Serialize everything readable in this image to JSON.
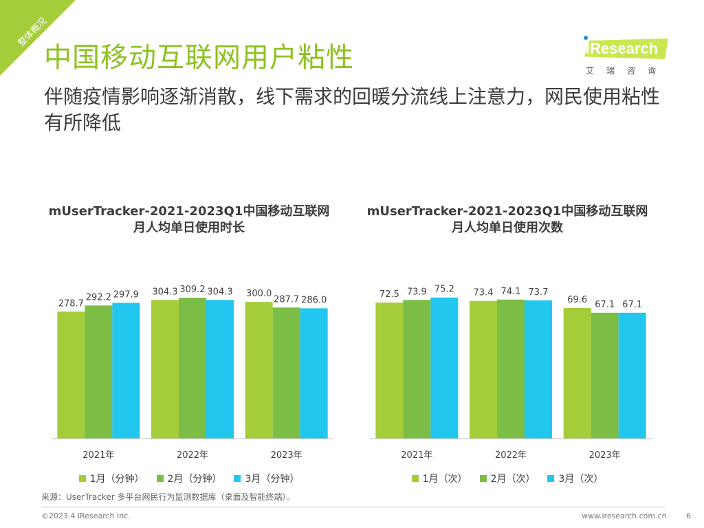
{
  "corner_tag": "整体概况",
  "title": "中国移动互联网用户粘性",
  "subtitle": "伴随疫情影响逐渐消散，线下需求的回暖分流线上注意力，网民使用粘性有所降低",
  "logo": {
    "text": "iResearch",
    "cn": "艾瑞咨询"
  },
  "colors": {
    "jan": "#a4cd39",
    "feb": "#7cbd45",
    "mar": "#22c7ef",
    "accent": "#8dc21f"
  },
  "chart_data": [
    {
      "type": "bar",
      "title": "mUserTracker-2021-2023Q1中国移动互联网月人均单日使用时长",
      "title_line1": "mUserTracker-2021-2023Q1中国移动互联网",
      "title_line2": "月人均单日使用时长",
      "categories": [
        "2021年",
        "2022年",
        "2023年"
      ],
      "series": [
        {
          "name": "1月（分钟）",
          "values": [
            278.7,
            304.3,
            300.0
          ],
          "labels": [
            "278.7",
            "304.3",
            "300.0"
          ]
        },
        {
          "name": "2月（分钟）",
          "values": [
            292.2,
            309.2,
            287.7
          ],
          "labels": [
            "292.2",
            "309.2",
            "287.7"
          ]
        },
        {
          "name": "3月（分钟）",
          "values": [
            297.9,
            304.3,
            286.0
          ],
          "labels": [
            "297.9",
            "304.3",
            "286.0"
          ]
        }
      ],
      "ylim": [
        0,
        350
      ],
      "legend": "bottom",
      "grid": false
    },
    {
      "type": "bar",
      "title": "mUserTracker-2021-2023Q1中国移动互联网月人均单日使用次数",
      "title_line1": "mUserTracker-2021-2023Q1中国移动互联网",
      "title_line2": "月人均单日使用次数",
      "categories": [
        "2021年",
        "2022年",
        "2023年"
      ],
      "series": [
        {
          "name": "1月（次）",
          "values": [
            72.5,
            73.4,
            69.6
          ],
          "labels": [
            "72.5",
            "73.4",
            "69.6"
          ]
        },
        {
          "name": "2月（次）",
          "values": [
            73.9,
            74.1,
            67.1
          ],
          "labels": [
            "73.9",
            "74.1",
            "67.1"
          ]
        },
        {
          "name": "3月（次）",
          "values": [
            75.2,
            73.7,
            67.1
          ],
          "labels": [
            "75.2",
            "73.7",
            "67.1"
          ]
        }
      ],
      "ylim": [
        0,
        85
      ],
      "legend": "bottom",
      "grid": false
    }
  ],
  "source": "来源：UserTracker 多平台网民行为监测数据库（桌面及智能终端）。",
  "copyright": "©2023.4 iResearch Inc.",
  "website": "www.iresearch.com.cn",
  "page_number": "6"
}
